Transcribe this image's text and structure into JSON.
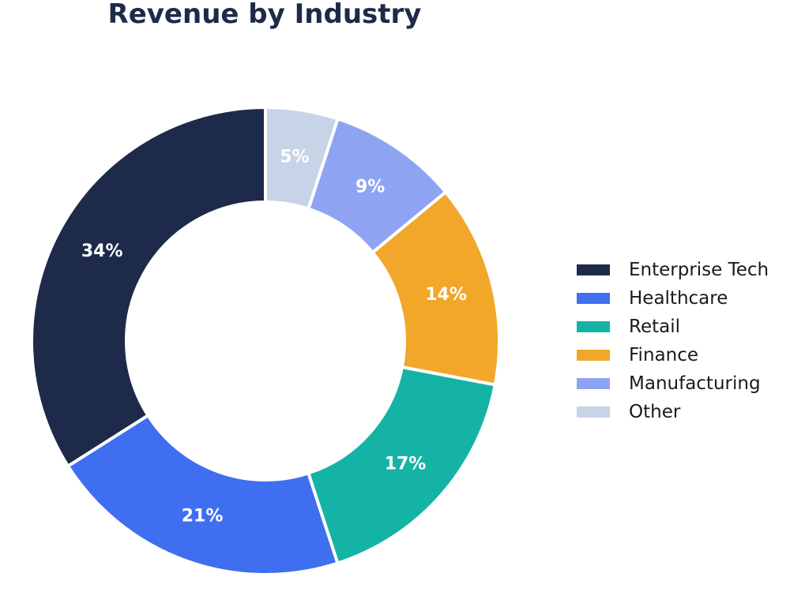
{
  "chart_data": {
    "type": "pie",
    "title": "Revenue by Industry",
    "categories": [
      "Enterprise Tech",
      "Healthcare",
      "Retail",
      "Finance",
      "Manufacturing",
      "Other"
    ],
    "values": [
      34,
      21,
      17,
      14,
      9,
      5
    ],
    "labels": [
      "34%",
      "21%",
      "17%",
      "14%",
      "9%",
      "5%"
    ],
    "colors": [
      "#1e2a4a",
      "#3f6ff0",
      "#14b3a6",
      "#f2a62a",
      "#8ea4f3",
      "#c7d3e6"
    ],
    "start_angle": "12 o'clock",
    "direction": "counterclockwise",
    "donut": true,
    "legend_position": "right"
  }
}
